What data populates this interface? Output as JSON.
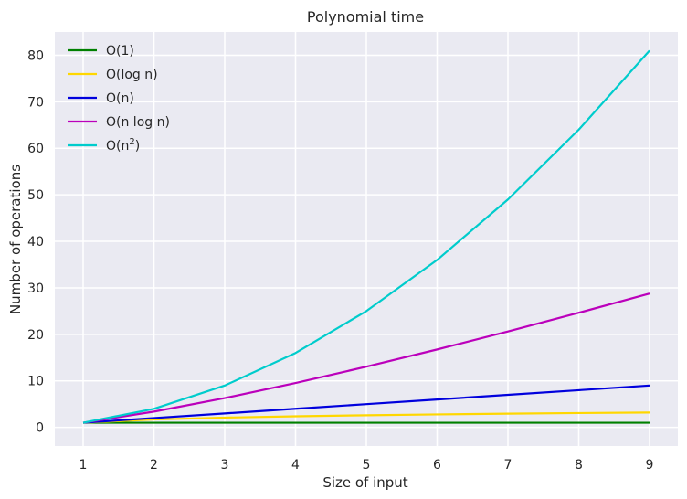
{
  "chart_data": {
    "type": "line",
    "title": "Polynomial time",
    "xlabel": "Size of input",
    "ylabel": "Number of operations",
    "xlim": [
      0.6,
      9.4
    ],
    "ylim": [
      -4.0,
      85.0
    ],
    "grid": true,
    "legend_position": "top-left",
    "x": [
      1,
      2,
      3,
      4,
      5,
      6,
      7,
      8,
      9
    ],
    "x_ticks": [
      1,
      2,
      3,
      4,
      5,
      6,
      7,
      8,
      9
    ],
    "y_ticks": [
      0,
      10,
      20,
      30,
      40,
      50,
      60,
      70,
      80
    ],
    "series": [
      {
        "name": "O(1)",
        "name_base": "O(1)",
        "name_sup": "",
        "color": "#008000",
        "values": [
          1,
          1,
          1,
          1,
          1,
          1,
          1,
          1,
          1
        ]
      },
      {
        "name": "O(log n)",
        "name_base": "O(log n)",
        "name_sup": "",
        "color": "#ffd700",
        "values": [
          1,
          1.69,
          2.1,
          2.39,
          2.61,
          2.79,
          2.95,
          3.08,
          3.2
        ]
      },
      {
        "name": "O(n)",
        "name_base": "O(n)",
        "name_sup": "",
        "color": "#0000dd",
        "values": [
          1,
          2,
          3,
          4,
          5,
          6,
          7,
          8,
          9
        ]
      },
      {
        "name": "O(n log n)",
        "name_base": "O(n log n)",
        "name_sup": "",
        "color": "#bb00bb",
        "values": [
          1,
          3.39,
          6.3,
          9.55,
          13.05,
          16.75,
          20.62,
          24.64,
          28.78
        ]
      },
      {
        "name": "O(n²)",
        "name_base": "O(n",
        "name_sup": "2",
        "name_end": ")",
        "color": "#00cccc",
        "values": [
          1,
          4,
          9,
          16,
          25,
          36,
          49,
          64,
          81
        ]
      }
    ]
  }
}
